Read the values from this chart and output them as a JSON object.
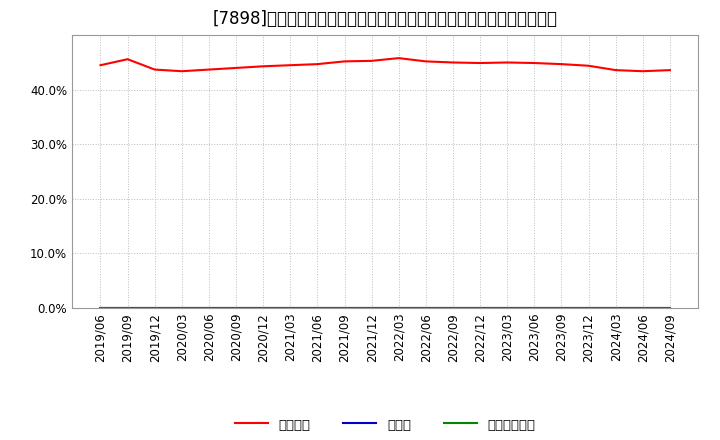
{
  "title": "[7898]　自己資本、のれん、繰延税金資産の総資産に対する比率の推移",
  "xlabel": "",
  "ylabel": "",
  "ylim": [
    0.0,
    0.5
  ],
  "yticks": [
    0.0,
    0.1,
    0.2,
    0.3,
    0.4
  ],
  "background_color": "#ffffff",
  "plot_bg_color": "#ffffff",
  "grid_color": "#bbbbbb",
  "x_labels": [
    "2019/06",
    "2019/09",
    "2019/12",
    "2020/03",
    "2020/06",
    "2020/09",
    "2020/12",
    "2021/03",
    "2021/06",
    "2021/09",
    "2021/12",
    "2022/03",
    "2022/06",
    "2022/09",
    "2022/12",
    "2023/03",
    "2023/06",
    "2023/09",
    "2023/12",
    "2024/03",
    "2024/06",
    "2024/09"
  ],
  "equity_ratio": [
    0.445,
    0.456,
    0.437,
    0.434,
    0.437,
    0.44,
    0.443,
    0.445,
    0.447,
    0.452,
    0.453,
    0.458,
    0.452,
    0.45,
    0.449,
    0.45,
    0.449,
    0.447,
    0.444,
    0.436,
    0.434,
    0.436
  ],
  "goodwill_ratio": [
    0.0,
    0.0,
    0.0,
    0.0,
    0.0,
    0.0,
    0.0,
    0.0,
    0.0,
    0.0,
    0.0,
    0.0,
    0.0,
    0.0,
    0.0,
    0.0,
    0.0,
    0.0,
    0.0,
    0.0,
    0.0,
    0.0
  ],
  "deferred_tax_ratio": [
    0.0,
    0.0,
    0.0,
    0.0,
    0.0,
    0.0,
    0.0,
    0.0,
    0.0,
    0.0,
    0.0,
    0.0,
    0.0,
    0.0,
    0.0,
    0.0,
    0.0,
    0.0,
    0.0,
    0.0,
    0.0,
    0.0
  ],
  "line_colors": {
    "equity": "#ff0000",
    "goodwill": "#0000cc",
    "deferred_tax": "#008800"
  },
  "legend_labels": {
    "equity": "自己資本",
    "goodwill": "のれん",
    "deferred_tax": "繰延税金資産"
  },
  "title_fontsize": 12,
  "tick_fontsize": 8.5,
  "legend_fontsize": 9.5
}
